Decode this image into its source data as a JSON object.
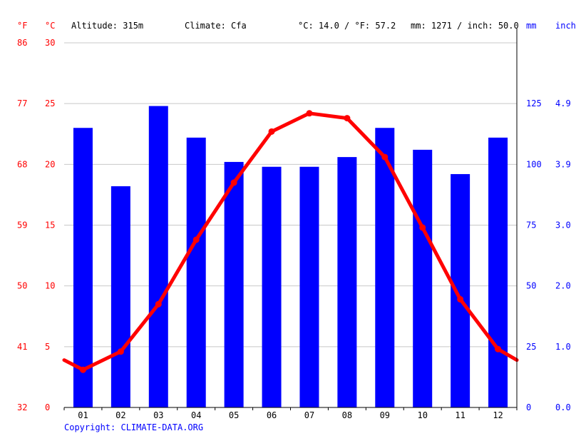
{
  "header": {
    "unit_f": "°F",
    "unit_c": "°C",
    "altitude": "Altitude: 315m",
    "climate": "Climate: Cfa",
    "temp_avg": "°C: 14.0 / °F: 57.2",
    "precip_total": "mm: 1271 / inch: 50.0",
    "unit_mm": "mm",
    "unit_inch": "inch"
  },
  "footer": {
    "copyright": "Copyright: CLIMATE-DATA.ORG"
  },
  "colors": {
    "temperature": "#ff0000",
    "precipitation": "#0000ff",
    "grid": "#c8c8c8"
  },
  "chart_data": {
    "type": "bar",
    "categories": [
      "01",
      "02",
      "03",
      "04",
      "05",
      "06",
      "07",
      "08",
      "09",
      "10",
      "11",
      "12"
    ],
    "series": [
      {
        "kind": "bar",
        "axis": "right",
        "values": [
          115,
          91,
          124,
          111,
          101,
          99,
          99,
          103,
          115,
          106,
          96,
          111
        ]
      },
      {
        "kind": "line",
        "axis": "left",
        "values": [
          3.1,
          4.6,
          8.5,
          13.8,
          18.5,
          22.7,
          24.2,
          23.8,
          20.6,
          14.8,
          8.9,
          4.8
        ]
      }
    ],
    "left_axis_c": {
      "range": [
        0,
        30
      ],
      "ticks": [
        "0",
        "5",
        "10",
        "15",
        "20",
        "25",
        "30"
      ]
    },
    "left_axis_f": {
      "ticks": [
        "32",
        "41",
        "50",
        "59",
        "68",
        "77",
        "86"
      ]
    },
    "right_axis_mm": {
      "range": [
        0,
        150
      ],
      "ticks": [
        "0",
        "25",
        "50",
        "75",
        "100",
        "125"
      ]
    },
    "right_axis_inch": {
      "ticks": [
        "0.0",
        "1.0",
        "2.0",
        "3.0",
        "3.9",
        "4.9"
      ]
    },
    "line_edge_values": [
      3.9,
      3.9
    ],
    "grid": true
  }
}
